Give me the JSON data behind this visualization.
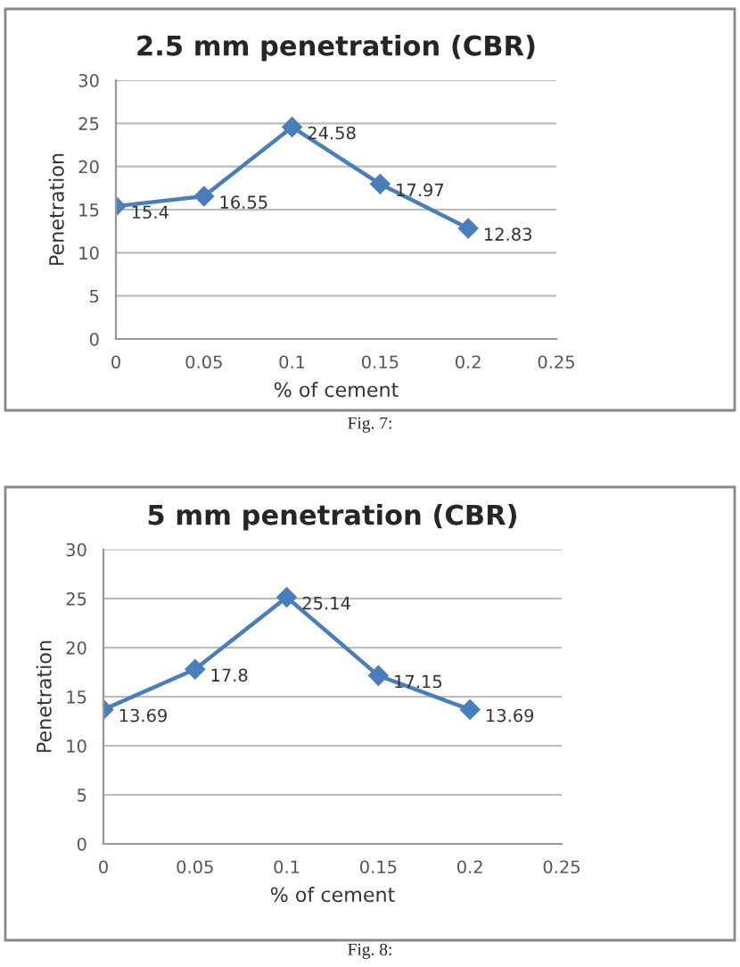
{
  "chart_data": [
    {
      "type": "line",
      "title": "2.5 mm penetration (CBR)",
      "xlabel": "% of cement",
      "ylabel": "Penetration",
      "x": [
        0,
        0.05,
        0.1,
        0.15,
        0.2
      ],
      "series": [
        {
          "color": "#4a7ebb",
          "values": [
            15.4,
            16.55,
            24.58,
            17.97,
            12.83
          ]
        }
      ],
      "xlim": [
        0,
        0.25
      ],
      "xticks": [
        0,
        0.05,
        0.1,
        0.15,
        0.2,
        0.25
      ],
      "ylim": [
        0,
        30
      ],
      "yticks": [
        0,
        5,
        10,
        15,
        20,
        25,
        30
      ],
      "grid": "y",
      "marker": "diamond",
      "line_style": "solid",
      "data_labels": true,
      "legend": false,
      "annotations": [
        "Fig. 7:"
      ]
    },
    {
      "type": "line",
      "title": "5 mm penetration (CBR)",
      "xlabel": "% of cement",
      "ylabel": "Penetration",
      "x": [
        0,
        0.05,
        0.1,
        0.15,
        0.2
      ],
      "series": [
        {
          "color": "#4a7ebb",
          "values": [
            13.69,
            17.8,
            25.14,
            17.15,
            13.69
          ]
        }
      ],
      "xlim": [
        0,
        0.25
      ],
      "xticks": [
        0,
        0.05,
        0.1,
        0.15,
        0.2,
        0.25
      ],
      "ylim": [
        0,
        30
      ],
      "yticks": [
        0,
        5,
        10,
        15,
        20,
        25,
        30
      ],
      "grid": "y",
      "marker": "diamond",
      "line_style": "solid",
      "data_labels": true,
      "legend": false,
      "annotations": [
        "Fig. 8:"
      ]
    }
  ]
}
